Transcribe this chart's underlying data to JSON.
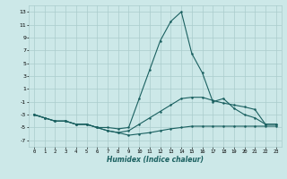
{
  "xlabel": "Humidex (Indice chaleur)",
  "bg_color": "#cce8e8",
  "grid_color": "#aacccc",
  "line_color": "#1a6060",
  "x_values": [
    0,
    1,
    2,
    3,
    4,
    5,
    6,
    7,
    8,
    9,
    10,
    11,
    12,
    13,
    14,
    15,
    16,
    17,
    18,
    19,
    20,
    21,
    22,
    23
  ],
  "line1": [
    -3.0,
    -3.5,
    -4.0,
    -4.0,
    -4.5,
    -4.5,
    -5.0,
    -5.0,
    -5.2,
    -5.0,
    -0.5,
    4.0,
    8.5,
    11.5,
    13.0,
    6.5,
    3.5,
    -1.0,
    -0.5,
    -2.0,
    -3.0,
    -3.5,
    -4.5,
    -4.5
  ],
  "line2": [
    -3.0,
    -3.5,
    -4.0,
    -4.0,
    -4.5,
    -4.5,
    -5.0,
    -5.5,
    -5.8,
    -6.2,
    -6.0,
    -5.8,
    -5.5,
    -5.2,
    -5.0,
    -4.8,
    -4.8,
    -4.8,
    -4.8,
    -4.8,
    -4.8,
    -4.8,
    -4.8,
    -4.8
  ],
  "line3": [
    -3.0,
    -3.5,
    -4.0,
    -4.0,
    -4.5,
    -4.5,
    -5.0,
    -5.5,
    -5.8,
    -5.5,
    -4.5,
    -3.5,
    -2.5,
    -1.5,
    -0.5,
    -0.3,
    -0.3,
    -0.8,
    -1.2,
    -1.5,
    -1.8,
    -2.2,
    -4.5,
    -4.5
  ],
  "ylim": [
    -8,
    14
  ],
  "xlim": [
    -0.5,
    23.5
  ],
  "yticks": [
    -7,
    -5,
    -3,
    -1,
    1,
    3,
    5,
    7,
    9,
    11,
    13
  ],
  "xticks": [
    0,
    1,
    2,
    3,
    4,
    5,
    6,
    7,
    8,
    9,
    10,
    11,
    12,
    13,
    14,
    15,
    16,
    17,
    18,
    19,
    20,
    21,
    22,
    23
  ]
}
